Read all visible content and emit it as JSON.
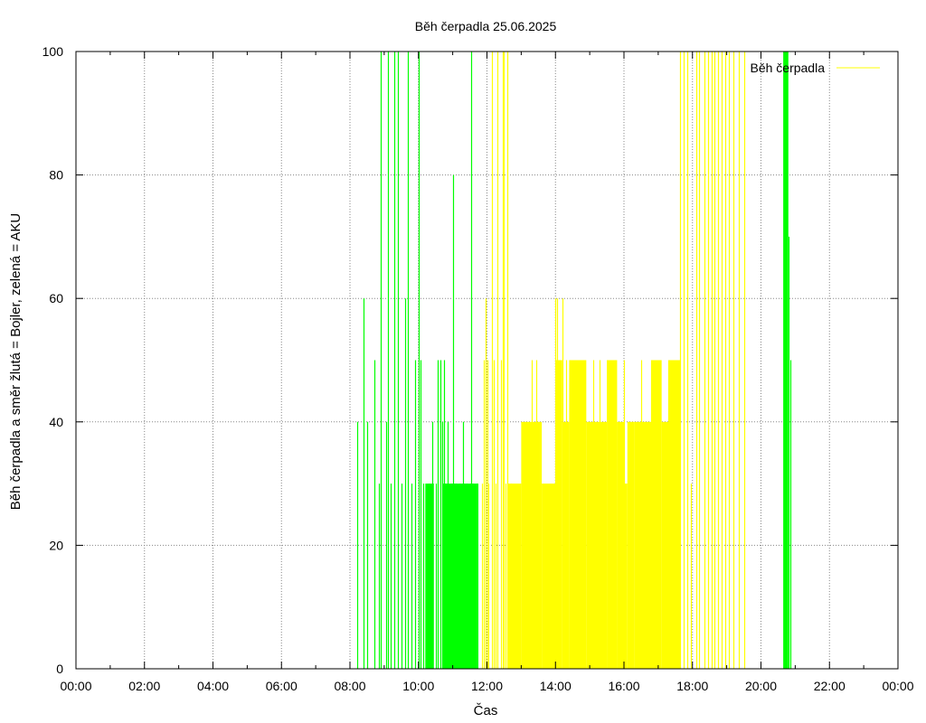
{
  "chart_data": {
    "type": "bar",
    "title": "Běh čerpadla 25.06.2025",
    "xlabel": "Čas",
    "ylabel": "Běh čerpadla a směr žlutá = Bojler, zelená = AKU",
    "xlim": [
      0,
      24
    ],
    "ylim": [
      0,
      100
    ],
    "x_tick_labels": [
      "00:00",
      "02:00",
      "04:00",
      "06:00",
      "08:00",
      "10:00",
      "12:00",
      "14:00",
      "16:00",
      "18:00",
      "20:00",
      "22:00",
      "00:00"
    ],
    "y_tick_labels": [
      "0",
      "20",
      "40",
      "60",
      "80",
      "100"
    ],
    "x_ticks": [
      0,
      2,
      4,
      6,
      8,
      10,
      12,
      14,
      16,
      18,
      20,
      22,
      24
    ],
    "y_ticks": [
      0,
      20,
      40,
      60,
      80,
      100
    ],
    "grid": true,
    "legend": {
      "label": "Běh čerpadla",
      "position": "top-right",
      "color": "#ffff00"
    },
    "series": [
      {
        "color": "#00ff00",
        "direction": "AKU",
        "points": [
          [
            8.2,
            40
          ],
          [
            8.4,
            60
          ],
          [
            8.5,
            40
          ],
          [
            8.7,
            50
          ],
          [
            8.85,
            30
          ],
          [
            8.9,
            100
          ],
          [
            9.05,
            40
          ],
          [
            9.1,
            100
          ],
          [
            9.2,
            30
          ],
          [
            9.3,
            100
          ],
          [
            9.4,
            100
          ],
          [
            9.5,
            30
          ],
          [
            9.6,
            60
          ],
          [
            9.7,
            100
          ],
          [
            9.8,
            30
          ],
          [
            9.9,
            50
          ],
          [
            10.0,
            100
          ],
          [
            10.05,
            50
          ],
          [
            10.15,
            30
          ],
          [
            10.3,
            30
          ],
          [
            10.4,
            40
          ],
          [
            10.5,
            30
          ],
          [
            10.55,
            50
          ],
          [
            10.65,
            50
          ],
          [
            10.7,
            40
          ],
          [
            10.75,
            50
          ],
          [
            10.8,
            30
          ],
          [
            10.85,
            40
          ],
          [
            10.95,
            30
          ],
          [
            11.0,
            80
          ],
          [
            11.1,
            30
          ],
          [
            11.2,
            30
          ],
          [
            11.3,
            40
          ],
          [
            11.4,
            30
          ],
          [
            11.5,
            30
          ],
          [
            11.55,
            100
          ],
          [
            11.6,
            30
          ],
          [
            11.7,
            30
          ],
          [
            20.7,
            100
          ],
          [
            20.8,
            70
          ],
          [
            20.85,
            50
          ]
        ],
        "blocks": [
          [
            10.2,
            10.45,
            30
          ],
          [
            10.7,
            11.75,
            30
          ],
          [
            20.65,
            20.8,
            100
          ]
        ]
      },
      {
        "color": "#ffff00",
        "direction": "Bojler",
        "points": [
          [
            11.85,
            30
          ],
          [
            11.9,
            50
          ],
          [
            11.95,
            60
          ],
          [
            12.0,
            50
          ],
          [
            12.05,
            30
          ],
          [
            12.15,
            100
          ],
          [
            12.2,
            50
          ],
          [
            12.25,
            30
          ],
          [
            12.3,
            100
          ],
          [
            12.4,
            50
          ],
          [
            12.45,
            100
          ],
          [
            12.5,
            100
          ],
          [
            12.55,
            30
          ],
          [
            12.6,
            100
          ],
          [
            12.7,
            30
          ],
          [
            13.3,
            50
          ],
          [
            13.45,
            50
          ],
          [
            14.0,
            60
          ],
          [
            14.05,
            60
          ],
          [
            14.2,
            60
          ],
          [
            14.3,
            50
          ],
          [
            14.5,
            50
          ],
          [
            15.1,
            50
          ],
          [
            15.3,
            50
          ],
          [
            15.7,
            50
          ],
          [
            16.0,
            50
          ],
          [
            16.25,
            40
          ],
          [
            16.5,
            50
          ],
          [
            16.8,
            50
          ],
          [
            17.3,
            50
          ],
          [
            17.6,
            30
          ],
          [
            17.65,
            100
          ],
          [
            17.75,
            100
          ],
          [
            17.85,
            100
          ],
          [
            17.95,
            30
          ],
          [
            18.1,
            100
          ],
          [
            18.2,
            100
          ],
          [
            18.35,
            100
          ],
          [
            18.45,
            100
          ],
          [
            18.55,
            100
          ],
          [
            18.65,
            100
          ],
          [
            18.75,
            100
          ],
          [
            18.85,
            100
          ],
          [
            18.95,
            100
          ],
          [
            19.05,
            100
          ],
          [
            19.2,
            100
          ],
          [
            19.35,
            100
          ],
          [
            19.5,
            100
          ]
        ],
        "blocks": [
          [
            12.6,
            13.0,
            30
          ],
          [
            13.0,
            13.6,
            40
          ],
          [
            13.6,
            14.0,
            30
          ],
          [
            14.0,
            14.2,
            50
          ],
          [
            14.2,
            14.4,
            40
          ],
          [
            14.4,
            14.9,
            50
          ],
          [
            14.9,
            15.5,
            40
          ],
          [
            15.5,
            15.8,
            50
          ],
          [
            15.8,
            16.0,
            40
          ],
          [
            16.0,
            16.1,
            30
          ],
          [
            16.1,
            16.3,
            40
          ],
          [
            16.3,
            16.8,
            40
          ],
          [
            16.8,
            17.1,
            50
          ],
          [
            17.1,
            17.3,
            40
          ],
          [
            17.3,
            17.65,
            50
          ]
        ]
      }
    ]
  }
}
